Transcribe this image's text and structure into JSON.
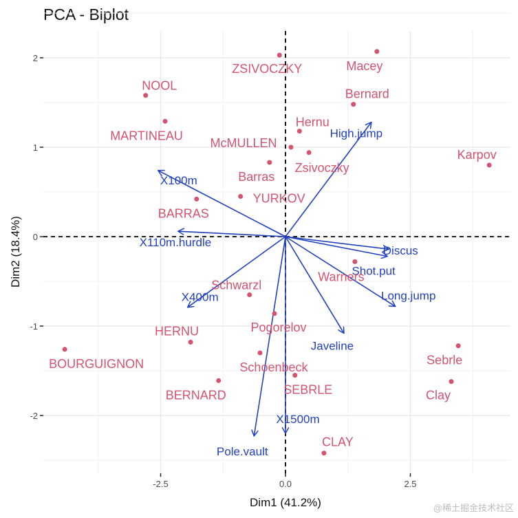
{
  "chart_data": {
    "type": "scatter",
    "title": "PCA - Biplot",
    "xlabel": "Dim1 (41.2%)",
    "ylabel": "Dim2 (18.4%)",
    "xlim": [
      -4.9,
      4.5
    ],
    "ylim": [
      -2.65,
      2.3
    ],
    "xticks": [
      -2.5,
      0.0,
      2.5
    ],
    "xtick_labels": [
      "-2.5",
      "0.0",
      "2.5"
    ],
    "yticks": [
      -2,
      -1,
      0,
      1,
      2
    ],
    "ytick_labels": [
      "-2",
      "-1",
      "0",
      "1",
      "2"
    ],
    "grid": true,
    "reference_lines": {
      "x": 0,
      "y": 0,
      "style": "dashed"
    },
    "colors": {
      "individuals": "#d4536e",
      "variables": "#2040c0"
    },
    "individuals": [
      {
        "name": "ZSIVOCZKY",
        "x": -0.12,
        "y": 2.03
      },
      {
        "name": "Macey",
        "x": 1.83,
        "y": 2.07
      },
      {
        "name": "Bernard",
        "x": 1.36,
        "y": 1.48
      },
      {
        "name": "NOOL",
        "x": -2.8,
        "y": 1.58
      },
      {
        "name": "MARTINEAU",
        "x": -2.41,
        "y": 1.29
      },
      {
        "name": "Hernu",
        "x": 0.28,
        "y": 1.18
      },
      {
        "name": "McMULLEN",
        "x": 0.11,
        "y": 1.0
      },
      {
        "name": "Zsivoczky",
        "x": 0.47,
        "y": 0.94
      },
      {
        "name": "Karpov",
        "x": 4.08,
        "y": 0.8
      },
      {
        "name": "Barras",
        "x": -0.32,
        "y": 0.83
      },
      {
        "name": "YURKOV",
        "x": -0.9,
        "y": 0.45
      },
      {
        "name": "BARRAS",
        "x": -1.78,
        "y": 0.42
      },
      {
        "name": "Warners",
        "x": 1.39,
        "y": -0.28
      },
      {
        "name": "Schwarzl",
        "x": -0.72,
        "y": -0.65
      },
      {
        "name": "Pogorelov",
        "x": -0.22,
        "y": -0.86
      },
      {
        "name": "HERNU",
        "x": -1.9,
        "y": -1.18
      },
      {
        "name": "BOURGUIGNON",
        "x": -4.42,
        "y": -1.26
      },
      {
        "name": "Sebrle",
        "x": 3.46,
        "y": -1.22
      },
      {
        "name": "Schoenbeck",
        "x": -0.51,
        "y": -1.3
      },
      {
        "name": "SEBRLE",
        "x": 0.19,
        "y": -1.55
      },
      {
        "name": "Clay",
        "x": 3.32,
        "y": -1.62
      },
      {
        "name": "BERNARD",
        "x": -1.34,
        "y": -1.61
      },
      {
        "name": "CLAY",
        "x": 0.77,
        "y": -2.42
      }
    ],
    "variables": [
      {
        "name": "High.jump",
        "x": 1.72,
        "y": 1.28
      },
      {
        "name": "X100m",
        "x": -2.55,
        "y": 0.74
      },
      {
        "name": "X110m.hurdle",
        "x": -2.15,
        "y": 0.06
      },
      {
        "name": "Discus",
        "x": 2.07,
        "y": -0.14
      },
      {
        "name": "Shot.put",
        "x": 2.04,
        "y": -0.22
      },
      {
        "name": "Long.jump",
        "x": 2.2,
        "y": -0.78
      },
      {
        "name": "Javeline",
        "x": 1.17,
        "y": -1.08
      },
      {
        "name": "X400m",
        "x": -1.96,
        "y": -0.79
      },
      {
        "name": "Pole.vault",
        "x": -0.63,
        "y": -2.23
      },
      {
        "name": "X1500m",
        "x": 0.0,
        "y": -2.2
      }
    ]
  },
  "watermark": "@稀土掘金技术社区"
}
